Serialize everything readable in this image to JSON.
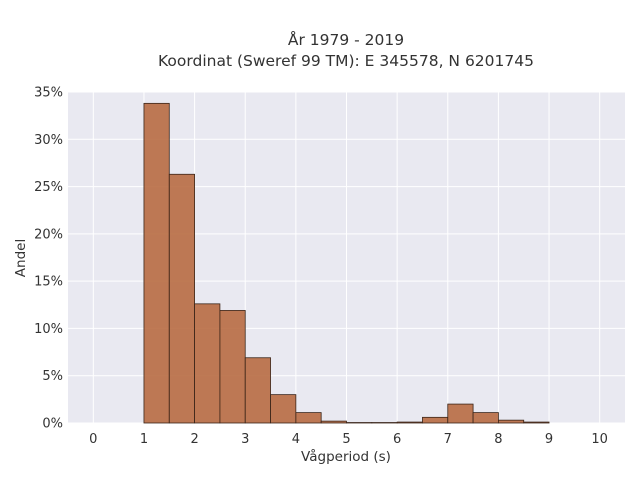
{
  "chart_data": {
    "type": "bar",
    "title": "År 1979 - 2019",
    "subtitle": "Koordinat (Sweref 99 TM): E 345578, N 6201745",
    "xlabel": "Vågperiod (s)",
    "ylabel": "Andel",
    "xlim": [
      -0.5,
      10.5
    ],
    "ylim": [
      0,
      0.35
    ],
    "x_ticks": [
      0,
      1,
      2,
      3,
      4,
      5,
      6,
      7,
      8,
      9,
      10
    ],
    "x_tick_labels": [
      "0",
      "1",
      "2",
      "3",
      "4",
      "5",
      "6",
      "7",
      "8",
      "9",
      "10"
    ],
    "y_ticks": [
      0,
      0.05,
      0.1,
      0.15,
      0.2,
      0.25,
      0.3,
      0.35
    ],
    "y_tick_labels": [
      "0%",
      "5%",
      "10%",
      "15%",
      "20%",
      "25%",
      "30%",
      "35%"
    ],
    "bin_width": 0.5,
    "bins": [
      {
        "x0": 1.0,
        "value": 0.338
      },
      {
        "x0": 1.5,
        "value": 0.263
      },
      {
        "x0": 2.0,
        "value": 0.126
      },
      {
        "x0": 2.5,
        "value": 0.119
      },
      {
        "x0": 3.0,
        "value": 0.069
      },
      {
        "x0": 3.5,
        "value": 0.03
      },
      {
        "x0": 4.0,
        "value": 0.011
      },
      {
        "x0": 4.5,
        "value": 0.002
      },
      {
        "x0": 5.0,
        "value": 0.0005
      },
      {
        "x0": 5.5,
        "value": 0.0005
      },
      {
        "x0": 6.0,
        "value": 0.001
      },
      {
        "x0": 6.5,
        "value": 0.006
      },
      {
        "x0": 7.0,
        "value": 0.02
      },
      {
        "x0": 7.5,
        "value": 0.011
      },
      {
        "x0": 8.0,
        "value": 0.003
      },
      {
        "x0": 8.5,
        "value": 0.001
      }
    ],
    "grid": true,
    "colors": {
      "bar": "#b86b43",
      "bar_edge": "#3a2418",
      "plot_bg": "#e9e9f1",
      "grid": "#ffffff"
    }
  }
}
